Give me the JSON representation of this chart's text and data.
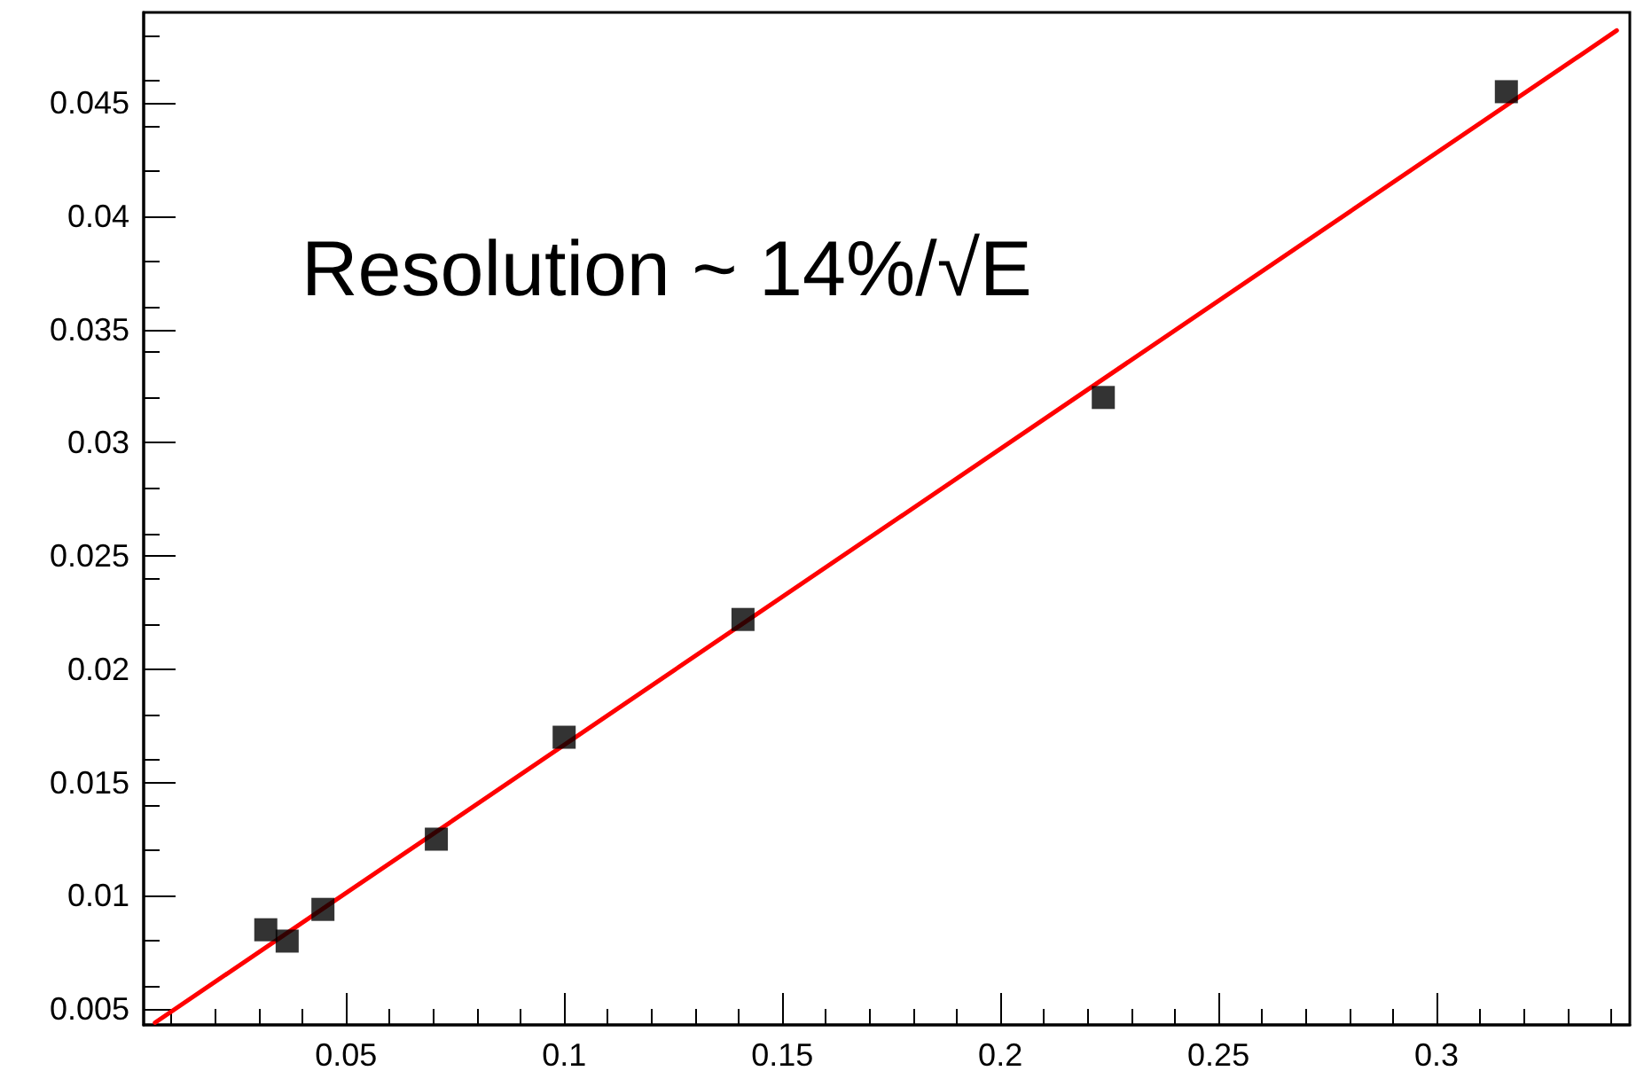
{
  "chart_data": {
    "type": "scatter",
    "annotations": [
      "Resolution ~ 14%/√E"
    ],
    "series": [
      {
        "color": "#000000",
        "marker": "square",
        "x": [
          0.0316,
          0.0365,
          0.0447,
          0.0707,
          0.1,
          0.141,
          0.2236,
          0.316
        ],
        "values": [
          0.0085,
          0.008,
          0.0094,
          0.0125,
          0.017,
          0.0222,
          0.032,
          0.0455
        ]
      },
      {
        "type": "line",
        "color": "#ff0000",
        "marker": "none",
        "line_style": "solid",
        "x": [
          0.0062,
          0.3413
        ],
        "values": [
          0.0044,
          0.0482
        ]
      }
    ],
    "xlim": [
      0.0036,
      0.3443
    ],
    "xticks": [
      0.05,
      0.1,
      0.15,
      0.2,
      0.25,
      0.3
    ],
    "ylim": [
      0.0043,
      0.049
    ],
    "yticks": [
      0.005,
      0.01,
      0.015,
      0.02,
      0.025,
      0.03,
      0.035,
      0.04,
      0.045
    ],
    "grid": false
  }
}
